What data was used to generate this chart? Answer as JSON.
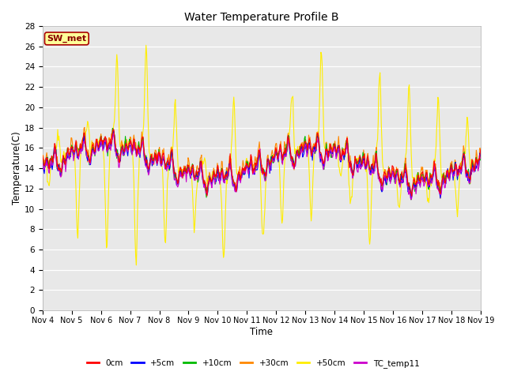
{
  "title": "Water Temperature Profile B",
  "xlabel": "Time",
  "ylabel": "Temperature(C)",
  "ylim": [
    0,
    28
  ],
  "yticks": [
    0,
    2,
    4,
    6,
    8,
    10,
    12,
    14,
    16,
    18,
    20,
    22,
    24,
    26,
    28
  ],
  "xtick_labels": [
    "Nov 4",
    "Nov 5",
    "Nov 6",
    "Nov 7",
    "Nov 8",
    "Nov 9",
    "Nov 10",
    "Nov 11",
    "Nov 12",
    "Nov 13",
    "Nov 14",
    "Nov 15",
    "Nov 16",
    "Nov 17",
    "Nov 18",
    "Nov 19"
  ],
  "legend_labels": [
    "0cm",
    "+5cm",
    "+10cm",
    "+30cm",
    "+50cm",
    "TC_temp11"
  ],
  "legend_colors": [
    "#ff0000",
    "#0000ff",
    "#00bb00",
    "#ff8800",
    "#ffee00",
    "#cc00cc"
  ],
  "annotation_text": "SW_met",
  "annotation_bg": "#ffff99",
  "annotation_border": "#cc0000",
  "plot_bg": "#e8e8e8",
  "fig_bg": "#ffffff",
  "num_points": 720,
  "seed": 7
}
